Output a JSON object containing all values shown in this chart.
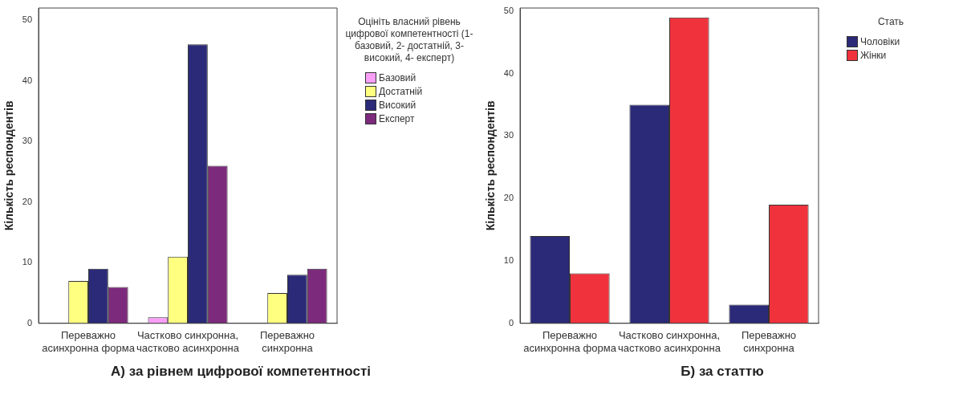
{
  "chart_data": [
    {
      "type": "bar",
      "title": "А) за рівнем цифрової компетентності",
      "ylabel": "Кількість респондентів",
      "legend_title": "Оцініть власний рівень цифрової компетентності (1- базовий, 2- достатній, 3- високий, 4- експерт)",
      "categories": [
        "Переважно асинхронна форма",
        "Частково синхронна, частково асинхронна",
        "Переважно синхронна"
      ],
      "series": [
        {
          "name": "Базовий",
          "color": "#f99ff7",
          "values": [
            null,
            1,
            null
          ]
        },
        {
          "name": "Достатній",
          "color": "#ffff80",
          "values": [
            7,
            11,
            5
          ]
        },
        {
          "name": "Високий",
          "color": "#2a2a78",
          "values": [
            9,
            46,
            8
          ]
        },
        {
          "name": "Експерт",
          "color": "#7c2a7c",
          "values": [
            6,
            26,
            9
          ]
        }
      ],
      "ylim": [
        0,
        52
      ],
      "yticks": [
        0,
        10,
        20,
        30,
        40,
        50
      ],
      "grid": false,
      "legend": "right"
    },
    {
      "type": "bar",
      "title": "Б) за статтю",
      "ylabel": "Кількість респондентів",
      "legend_title": "Стать",
      "categories": [
        "Переважно асинхронна форма",
        "Частково синхронна, частково асинхронна",
        "Переважно синхронна"
      ],
      "series": [
        {
          "name": "Чоловіки",
          "color": "#2a2a78",
          "values": [
            14,
            35,
            3
          ]
        },
        {
          "name": "Жінки",
          "color": "#f0323c",
          "values": [
            8,
            49,
            19
          ]
        }
      ],
      "ylim": [
        0,
        50.5
      ],
      "yticks": [
        0,
        10,
        20,
        30,
        40,
        50
      ],
      "grid": false,
      "legend": "right"
    }
  ]
}
